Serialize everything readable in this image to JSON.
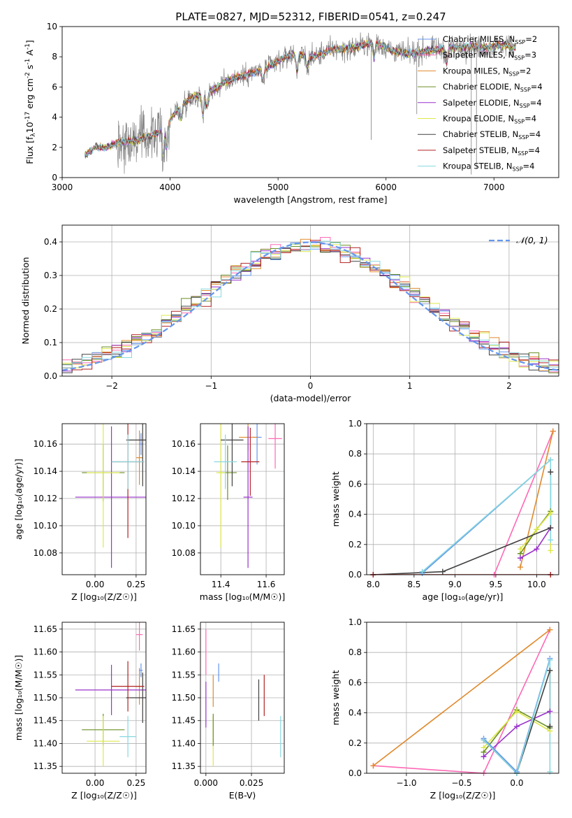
{
  "figure": {
    "title": "PLATE=0827, MJD=52312, FIBERID=0541, z=0.247"
  },
  "colors": {
    "Chabrier MILES": "#6495ed",
    "Salpeter MILES": "#ff69b4",
    "Kroupa MILES": "#e08a2c",
    "Chabrier ELODIE": "#6b8e23",
    "Salpeter ELODIE": "#9932cc",
    "Kroupa ELODIE": "#dde84a",
    "Chabrier STELIB": "#404040",
    "Salpeter STELIB": "#b22222",
    "Kroupa STELIB": "#87d8e0",
    "Kroupa STELIB SSP markers": "#76c7d0",
    "data": "#808080",
    "normal": "#6495ed",
    "grid": "#b0b0b0"
  },
  "chart_data": [
    {
      "id": "spectrum",
      "type": "line",
      "xlabel": "wavelength [Angstrom, rest frame]",
      "ylabel_parts": [
        "Flux [f",
        "λ",
        "10",
        "-17",
        " erg cm",
        "-2",
        " s",
        "-1",
        " A",
        "-1",
        "]"
      ],
      "xlim": [
        3000,
        7600
      ],
      "ylim": [
        0,
        10
      ],
      "xticks": [
        "3000",
        "4000",
        "5000",
        "6000",
        "7000"
      ],
      "yticks": [
        "0",
        "2",
        "4",
        "6",
        "8",
        "10"
      ],
      "grid": false,
      "legend_placement": "top-right",
      "legend": [
        {
          "name": "Chabrier MILES",
          "nssp": "2"
        },
        {
          "name": "Salpeter MILES",
          "nssp": "3"
        },
        {
          "name": "Kroupa MILES",
          "nssp": "2"
        },
        {
          "name": "Chabrier ELODIE",
          "nssp": "4"
        },
        {
          "name": "Salpeter ELODIE",
          "nssp": "4"
        },
        {
          "name": "Kroupa ELODIE",
          "nssp": "4"
        },
        {
          "name": "Chabrier STELIB",
          "nssp": "4"
        },
        {
          "name": "Salpeter STELIB",
          "nssp": "4"
        },
        {
          "name": "Kroupa STELIB",
          "nssp": "4"
        }
      ],
      "continuum": {
        "x": [
          3210,
          3300,
          3400,
          3500,
          3600,
          3700,
          3800,
          3900,
          4000,
          4100,
          4200,
          4300,
          4400,
          4500,
          4600,
          4700,
          4800,
          4900,
          5000,
          5100,
          5200,
          5300,
          5400,
          5500,
          5600,
          5700,
          5800,
          5900,
          6000,
          6100,
          6200,
          6300,
          6400,
          6500,
          6600,
          6700,
          6800,
          6900,
          7000,
          7100,
          7200
        ],
        "y": [
          1.5,
          2.0,
          2.0,
          2.3,
          2.4,
          2.5,
          2.7,
          3.0,
          3.8,
          4.8,
          5.3,
          5.5,
          5.8,
          6.3,
          6.6,
          6.8,
          7.0,
          7.3,
          7.7,
          8.1,
          8.2,
          7.9,
          8.2,
          8.5,
          8.5,
          8.6,
          8.8,
          9.0,
          8.6,
          8.3,
          8.2,
          8.3,
          8.4,
          8.5,
          8.6,
          8.6,
          8.7,
          8.6,
          8.7,
          8.8,
          8.6
        ]
      },
      "absorption_lines": [
        {
          "x": 3934,
          "depth": 1.8
        },
        {
          "x": 3969,
          "depth": 1.6
        },
        {
          "x": 4102,
          "depth": 0.9
        },
        {
          "x": 4304,
          "depth": 1.4
        },
        {
          "x": 4341,
          "depth": 0.9
        },
        {
          "x": 4861,
          "depth": 0.8
        },
        {
          "x": 5175,
          "depth": 1.1
        },
        {
          "x": 5270,
          "depth": 0.7
        },
        {
          "x": 5890,
          "depth": 1.0
        },
        {
          "x": 6563,
          "depth": 0.9
        }
      ]
    },
    {
      "id": "residuals",
      "type": "histogram",
      "xlabel": "(data-model)/error",
      "ylabel": "Normed distribution",
      "xlim": [
        -2.5,
        2.5
      ],
      "ylim": [
        0,
        0.45
      ],
      "xticks": [
        "-2",
        "-1",
        "0",
        "1",
        "2"
      ],
      "yticks": [
        "0.0",
        "0.1",
        "0.2",
        "0.3",
        "0.4"
      ],
      "grid": true,
      "legend_placement": "top-right",
      "legend": [
        {
          "name": "𝒩(0, 1)"
        }
      ],
      "bin_width": 0.1
    },
    {
      "id": "age_vs_Z",
      "type": "errorbar",
      "xlabel": "Z [log₁₀(Z/Z☉)]",
      "ylabel": "age  [log₁₀(age/yr)]",
      "xlim": [
        -0.2,
        0.31
      ],
      "ylim": [
        10.064,
        10.175
      ],
      "xticks": [
        "0.00",
        "0.25"
      ],
      "yticks": [
        "10.08",
        "10.10",
        "10.12",
        "10.14",
        "10.16"
      ],
      "grid": true,
      "points": [
        {
          "series": "Chabrier MILES",
          "x": 0.28,
          "xerr": 0.01,
          "y": 10.16,
          "yerr": 0.008
        },
        {
          "series": "Salpeter MILES",
          "x": 0.27,
          "xerr": 0.0,
          "y": 10.163,
          "yerr": 0.003
        },
        {
          "series": "Kroupa MILES",
          "x": 0.27,
          "xerr": 0.02,
          "y": 10.15,
          "yerr": 0.02
        },
        {
          "series": "Chabrier ELODIE",
          "x": 0.05,
          "xerr": 0.13,
          "y": 10.139,
          "yerr": 0.021
        },
        {
          "series": "Salpeter ELODIE",
          "x": 0.1,
          "xerr": 0.22,
          "y": 10.121,
          "yerr": 0.052
        },
        {
          "series": "Kroupa ELODIE",
          "x": 0.05,
          "xerr": 0.1,
          "y": 10.139,
          "yerr": 0.055
        },
        {
          "series": "Chabrier STELIB",
          "x": 0.29,
          "xerr": 0.1,
          "y": 10.163,
          "yerr": 0.034
        },
        {
          "series": "Salpeter STELIB",
          "x": 0.2,
          "xerr": 0.1,
          "y": 10.147,
          "yerr": 0.056
        },
        {
          "series": "Kroupa STELIB",
          "x": 0.2,
          "xerr": 0.1,
          "y": 10.147,
          "yerr": 0.02
        }
      ]
    },
    {
      "id": "age_vs_mass",
      "type": "errorbar",
      "xlabel": "mass [log₁₀(M/M☉)]",
      "ylabel": "",
      "xlim": [
        11.31,
        11.68
      ],
      "ylim": [
        10.064,
        10.175
      ],
      "xticks": [
        "11.4",
        "11.6"
      ],
      "yticks": [
        "10.08",
        "10.10",
        "10.12",
        "10.14",
        "10.16"
      ],
      "grid": true,
      "points": [
        {
          "series": "Chabrier MILES",
          "x": 11.56,
          "xerr": 0.02,
          "y": 10.165,
          "yerr": 0.02
        },
        {
          "series": "Salpeter MILES",
          "x": 11.64,
          "xerr": 0.03,
          "y": 10.164,
          "yerr": 0.022
        },
        {
          "series": "Kroupa MILES",
          "x": 11.52,
          "xerr": 0.04,
          "y": 10.165,
          "yerr": 0.01
        },
        {
          "series": "Chabrier ELODIE",
          "x": 11.43,
          "xerr": 0.04,
          "y": 10.139,
          "yerr": 0.02
        },
        {
          "series": "Salpeter ELODIE",
          "x": 11.52,
          "xerr": 0.02,
          "y": 10.121,
          "yerr": 0.052
        },
        {
          "series": "Kroupa ELODIE",
          "x": 11.4,
          "xerr": 0.02,
          "y": 10.139,
          "yerr": 0.055
        },
        {
          "series": "Chabrier STELIB",
          "x": 11.45,
          "xerr": 0.05,
          "y": 10.163,
          "yerr": 0.034
        },
        {
          "series": "Salpeter STELIB",
          "x": 11.53,
          "xerr": 0.04,
          "y": 10.147,
          "yerr": 0.025
        },
        {
          "series": "Kroupa STELIB",
          "x": 11.42,
          "xerr": 0.05,
          "y": 10.147,
          "yerr": 0.02
        }
      ]
    },
    {
      "id": "weights_vs_age",
      "type": "line",
      "xlabel": "age  [log₁₀(age/yr)]",
      "ylabel": "mass weight",
      "xlim": [
        7.92,
        10.27
      ],
      "ylim": [
        0,
        1
      ],
      "xticks": [
        "8.0",
        "8.5",
        "9.0",
        "9.5",
        "10.0"
      ],
      "yticks": [
        "0.0",
        "0.2",
        "0.4",
        "0.6",
        "0.8",
        "1.0"
      ],
      "grid": true,
      "series": [
        {
          "name": "Chabrier MILES",
          "x": [
            8.6,
            10.17
          ],
          "y": [
            0.01,
            0.76
          ]
        },
        {
          "name": "Salpeter MILES",
          "x": [
            9.48,
            10.2
          ],
          "y": [
            0.0,
            0.95
          ]
        },
        {
          "name": "Kroupa MILES",
          "x": [
            9.8,
            10.2
          ],
          "y": [
            0.05,
            0.95
          ]
        },
        {
          "name": "Chabrier ELODIE",
          "x": [
            9.8,
            10.0,
            10.17
          ],
          "y": [
            0.14,
            0.3,
            0.42
          ]
        },
        {
          "name": "Salpeter ELODIE",
          "x": [
            9.8,
            10.0,
            10.17
          ],
          "y": [
            0.11,
            0.17,
            0.31
          ]
        },
        {
          "name": "Kroupa ELODIE",
          "x": [
            9.8,
            10.0,
            10.17,
            10.17
          ],
          "y": [
            0.17,
            0.3,
            0.41,
            0.16
          ]
        },
        {
          "name": "Chabrier STELIB",
          "x": [
            8.0,
            8.85,
            10.17,
            10.17
          ],
          "y": [
            0.0,
            0.02,
            0.31,
            0.68
          ]
        },
        {
          "name": "Salpeter STELIB",
          "x": [
            8.0,
            10.17
          ],
          "y": [
            0.0,
            0.0
          ]
        },
        {
          "name": "Kroupa STELIB",
          "x": [
            8.6,
            10.17,
            10.17
          ],
          "y": [
            0.02,
            0.76,
            0.23
          ]
        }
      ]
    },
    {
      "id": "mass_vs_Z",
      "type": "errorbar",
      "xlabel": "Z [log₁₀(Z/Z☉)]",
      "ylabel": "mass [log₁₀(M/M☉)]",
      "xlim": [
        -0.2,
        0.31
      ],
      "ylim": [
        11.335,
        11.665
      ],
      "xticks": [
        "0.00",
        "0.25"
      ],
      "yticks": [
        "11.35",
        "11.40",
        "11.45",
        "11.50",
        "11.55",
        "11.60",
        "11.65"
      ],
      "grid": true,
      "points": [
        {
          "series": "Chabrier MILES",
          "x": 0.28,
          "xerr": 0.01,
          "y": 11.56,
          "yerr": 0.015
        },
        {
          "series": "Salpeter MILES",
          "x": 0.27,
          "xerr": 0.02,
          "y": 11.638,
          "yerr": 0.035
        },
        {
          "series": "Kroupa MILES",
          "x": 0.27,
          "xerr": 0.02,
          "y": 11.525,
          "yerr": 0.04
        },
        {
          "series": "Chabrier ELODIE",
          "x": 0.05,
          "xerr": 0.13,
          "y": 11.43,
          "yerr": 0.035
        },
        {
          "series": "Salpeter ELODIE",
          "x": 0.1,
          "xerr": 0.22,
          "y": 11.517,
          "yerr": 0.055
        },
        {
          "series": "Kroupa ELODIE",
          "x": 0.05,
          "xerr": 0.1,
          "y": 11.405,
          "yerr": 0.055
        },
        {
          "series": "Chabrier STELIB",
          "x": 0.29,
          "xerr": 0.1,
          "y": 11.5,
          "yerr": 0.055
        },
        {
          "series": "Salpeter STELIB",
          "x": 0.2,
          "xerr": 0.1,
          "y": 11.525,
          "yerr": 0.055
        },
        {
          "series": "Kroupa STELIB",
          "x": 0.2,
          "xerr": 0.05,
          "y": 11.415,
          "yerr": 0.045
        }
      ]
    },
    {
      "id": "mass_vs_ebv",
      "type": "errorbar",
      "xlabel": "E(B-V)",
      "ylabel": "",
      "xlim": [
        -0.003,
        0.043
      ],
      "ylim": [
        11.335,
        11.665
      ],
      "xticks": [
        "0.000",
        "0.025"
      ],
      "yticks": [
        "11.35",
        "11.40",
        "11.45",
        "11.50",
        "11.55",
        "11.60",
        "11.65"
      ],
      "grid": true,
      "points": [
        {
          "series": "Salpeter MILES",
          "x": 0.0,
          "xerr": 0.0,
          "y": 11.6,
          "yerr": 0.05
        },
        {
          "series": "Salpeter ELODIE",
          "x": 0.0,
          "xerr": 0.0,
          "y": 11.485,
          "yerr": 0.05
        },
        {
          "series": "Kroupa MILES",
          "x": 0.004,
          "xerr": 0.0,
          "y": 11.515,
          "yerr": 0.035
        },
        {
          "series": "Kroupa ELODIE",
          "x": 0.004,
          "xerr": 0.0,
          "y": 11.405,
          "yerr": 0.055
        },
        {
          "series": "Chabrier ELODIE",
          "x": 0.004,
          "xerr": 0.0,
          "y": 11.43,
          "yerr": 0.035
        },
        {
          "series": "Chabrier MILES",
          "x": 0.007,
          "xerr": 0.0,
          "y": 11.555,
          "yerr": 0.02
        },
        {
          "series": "Chabrier STELIB",
          "x": 0.029,
          "xerr": 0.0,
          "y": 11.495,
          "yerr": 0.045
        },
        {
          "series": "Salpeter STELIB",
          "x": 0.032,
          "xerr": 0.0,
          "y": 11.505,
          "yerr": 0.045
        },
        {
          "series": "Kroupa STELIB",
          "x": 0.041,
          "xerr": 0.0,
          "y": 11.415,
          "yerr": 0.045
        }
      ]
    },
    {
      "id": "weights_vs_Z",
      "type": "line",
      "xlabel": "Z [log₁₀(Z/Z☉)]",
      "ylabel": "mass weight",
      "xlim": [
        -1.36,
        0.38
      ],
      "ylim": [
        0,
        1
      ],
      "xticks": [
        "-1.0",
        "-0.5",
        "0.0"
      ],
      "yticks": [
        "0.0",
        "0.2",
        "0.4",
        "0.6",
        "0.8",
        "1.0"
      ],
      "grid": true,
      "series": [
        {
          "name": "Salpeter MILES",
          "x": [
            -1.3,
            -0.3,
            0.3
          ],
          "y": [
            0.05,
            0.0,
            0.95
          ]
        },
        {
          "name": "Kroupa MILES",
          "x": [
            -1.3,
            0.3
          ],
          "y": [
            0.05,
            0.95
          ]
        },
        {
          "name": "Chabrier ELODIE",
          "x": [
            -0.3,
            0.0,
            0.3
          ],
          "y": [
            0.14,
            0.42,
            0.3
          ]
        },
        {
          "name": "Kroupa ELODIE",
          "x": [
            -0.3,
            0.0,
            0.3
          ],
          "y": [
            0.17,
            0.41,
            0.28
          ]
        },
        {
          "name": "Salpeter ELODIE",
          "x": [
            -0.3,
            0.0,
            0.3
          ],
          "y": [
            0.11,
            0.31,
            0.41
          ]
        },
        {
          "name": "Chabrier STELIB",
          "x": [
            -0.3,
            0.0,
            0.3,
            0.3
          ],
          "y": [
            0.22,
            0.0,
            0.68,
            0.31
          ]
        },
        {
          "name": "Chabrier MILES",
          "x": [
            -0.3,
            0.0,
            0.3
          ],
          "y": [
            0.23,
            0.01,
            0.76
          ]
        },
        {
          "name": "Kroupa STELIB",
          "x": [
            -0.3,
            0.0,
            0.3,
            0.3
          ],
          "y": [
            0.22,
            0.0,
            0.75,
            0.01
          ]
        }
      ]
    }
  ]
}
